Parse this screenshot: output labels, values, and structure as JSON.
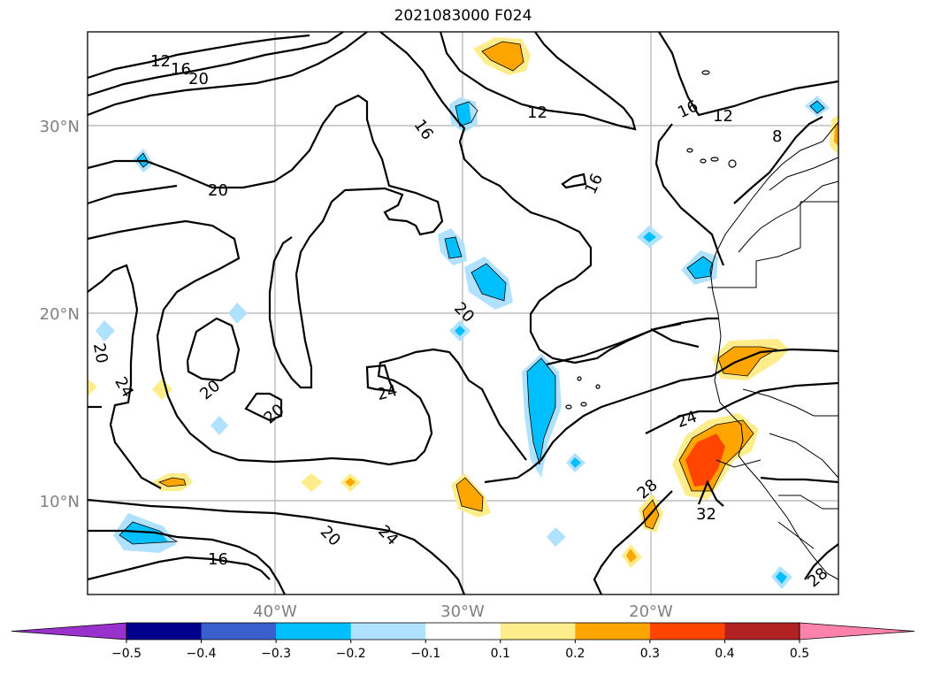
{
  "title": "2021083000 F024",
  "axes": {
    "lat_labels": [
      "30°N",
      "20°N",
      "10°N"
    ],
    "lon_labels": [
      "40°W",
      "30°W",
      "20°W"
    ]
  },
  "contour_labels": [
    "12",
    "16",
    "20",
    "12",
    "16",
    "12",
    "16",
    "8",
    "20",
    "16",
    "20",
    "20",
    "24",
    "20",
    "20",
    "24",
    "24",
    "28",
    "32",
    "20",
    "24",
    "16",
    "28"
  ],
  "colorbar": {
    "ticks": [
      "−0.5",
      "−0.4",
      "−0.3",
      "−0.2",
      "−0.1",
      "0.1",
      "0.2",
      "0.3",
      "0.4",
      "0.5"
    ],
    "colors": [
      "#9932cc",
      "#00008b",
      "#3a5fcd",
      "#00bfff",
      "#b0e2ff",
      "#ffffff",
      "#ffec8b",
      "#ffa500",
      "#ff4500",
      "#b22222",
      "#ff82ab"
    ]
  }
}
